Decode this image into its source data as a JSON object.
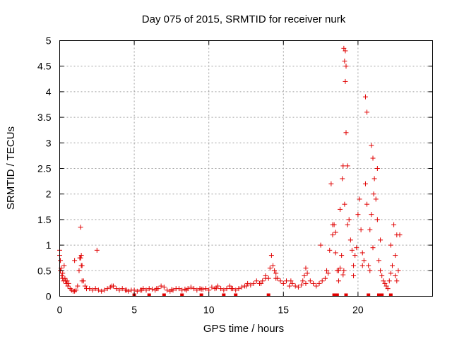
{
  "chart_data": {
    "type": "scatter",
    "title": "Day 075 of 2015, SRMTID for receiver nurk",
    "xlabel": "GPS time / hours",
    "ylabel": "SRMTID / TECUs",
    "xlim": [
      0,
      25
    ],
    "ylim": [
      0,
      5
    ],
    "xticks": [
      0,
      5,
      10,
      15,
      20
    ],
    "xtick_labels": [
      "0",
      "5",
      "10",
      "15",
      "20"
    ],
    "yticks": [
      0,
      0.5,
      1,
      1.5,
      2,
      2.5,
      3,
      3.5,
      4,
      4.5,
      5
    ],
    "ytick_labels": [
      "0",
      "0.5",
      "1",
      "1.5",
      "2",
      "2.5",
      "3",
      "3.5",
      "4",
      "4.5",
      "5"
    ],
    "grid": true,
    "marker": "+",
    "color": "#e00000",
    "series": [
      {
        "name": "SRMTID",
        "x": [
          0.0,
          0.05,
          0.1,
          0.15,
          0.2,
          0.25,
          0.3,
          0.35,
          0.4,
          0.45,
          0.5,
          0.55,
          0.6,
          0.7,
          0.8,
          0.9,
          1.0,
          1.1,
          1.2,
          1.3,
          1.35,
          1.4,
          1.45,
          1.5,
          1.6,
          1.7,
          1.8,
          2.0,
          2.2,
          2.4,
          2.6,
          2.8,
          3.0,
          3.2,
          3.4,
          3.6,
          3.8,
          4.0,
          4.2,
          4.4,
          4.6,
          4.8,
          5.0,
          5.2,
          5.4,
          5.6,
          5.8,
          6.0,
          6.2,
          6.4,
          6.6,
          6.8,
          7.0,
          7.2,
          7.4,
          7.6,
          7.8,
          8.0,
          8.2,
          8.4,
          8.6,
          8.8,
          9.0,
          9.2,
          9.4,
          9.6,
          9.8,
          10.0,
          10.2,
          10.4,
          10.6,
          10.8,
          11.0,
          11.2,
          11.4,
          11.6,
          11.8,
          12.0,
          12.2,
          12.4,
          12.6,
          12.8,
          13.0,
          13.2,
          13.4,
          13.6,
          13.8,
          14.0,
          14.1,
          14.2,
          14.3,
          14.4,
          14.5,
          14.6,
          14.8,
          15.0,
          15.2,
          15.4,
          15.6,
          15.8,
          16.0,
          16.2,
          16.3,
          16.4,
          16.5,
          16.6,
          16.8,
          17.0,
          17.2,
          17.4,
          17.6,
          17.8,
          17.9,
          18.0,
          18.1,
          18.2,
          18.3,
          18.4,
          18.5,
          18.6,
          18.7,
          18.8,
          18.9,
          18.95,
          19.0,
          19.05,
          19.1,
          19.15,
          19.2,
          19.3,
          19.4,
          19.5,
          19.6,
          19.7,
          19.8,
          19.9,
          20.0,
          20.1,
          20.2,
          20.3,
          20.4,
          20.5,
          20.6,
          20.7,
          20.8,
          20.9,
          21.0,
          21.1,
          21.2,
          21.3,
          21.4,
          21.5,
          21.6,
          21.7,
          21.8,
          21.9,
          22.0,
          22.1,
          22.2,
          22.3,
          22.4,
          22.5,
          22.6,
          22.7,
          22.8,
          0.0,
          0.05,
          0.2,
          1.4,
          1.45,
          13.8,
          18.5,
          18.8,
          19.0,
          19.05,
          19.1,
          19.15,
          19.2,
          20.5,
          20.6,
          20.9,
          21.0,
          21.05,
          21.3,
          22.2,
          22.6,
          1.0,
          1.5,
          2.5,
          3.5,
          4.5,
          5.5,
          6.5,
          7.5,
          8.5,
          9.5,
          10.5,
          11.5,
          12.5,
          13.5,
          14.5,
          15.5,
          16.5,
          17.5,
          18.3,
          18.7,
          19.3,
          19.7,
          20.3,
          20.8,
          21.5,
          22.5
        ],
        "y": [
          0.9,
          0.7,
          0.55,
          0.4,
          0.35,
          0.3,
          0.6,
          0.35,
          0.3,
          0.25,
          0.3,
          0.2,
          0.25,
          0.15,
          0.12,
          0.1,
          0.1,
          0.12,
          0.2,
          0.5,
          0.75,
          1.35,
          0.8,
          0.6,
          0.3,
          0.2,
          0.15,
          0.15,
          0.12,
          0.15,
          0.12,
          0.1,
          0.12,
          0.15,
          0.18,
          0.2,
          0.15,
          0.12,
          0.15,
          0.12,
          0.1,
          0.12,
          0.12,
          0.1,
          0.12,
          0.15,
          0.12,
          0.15,
          0.14,
          0.12,
          0.15,
          0.2,
          0.18,
          0.12,
          0.1,
          0.12,
          0.15,
          0.15,
          0.12,
          0.14,
          0.15,
          0.18,
          0.15,
          0.12,
          0.15,
          0.14,
          0.15,
          0.12,
          0.18,
          0.15,
          0.2,
          0.15,
          0.12,
          0.15,
          0.2,
          0.15,
          0.12,
          0.15,
          0.18,
          0.2,
          0.25,
          0.22,
          0.25,
          0.3,
          0.25,
          0.3,
          0.35,
          0.35,
          0.55,
          0.8,
          0.6,
          0.5,
          0.45,
          0.35,
          0.3,
          0.25,
          0.3,
          0.2,
          0.25,
          0.2,
          0.18,
          0.22,
          0.3,
          0.4,
          0.55,
          0.45,
          0.3,
          0.25,
          0.2,
          0.25,
          0.3,
          0.35,
          0.5,
          0.45,
          0.9,
          2.2,
          1.2,
          1.4,
          0.85,
          0.5,
          0.3,
          1.7,
          0.8,
          2.3,
          2.55,
          4.85,
          4.6,
          4.2,
          3.2,
          2.55,
          1.5,
          1.1,
          0.9,
          0.6,
          0.8,
          0.95,
          1.6,
          1.9,
          1.3,
          0.85,
          0.7,
          2.2,
          1.8,
          0.6,
          1.3,
          1.6,
          2.7,
          2.3,
          1.9,
          1.5,
          0.7,
          0.5,
          0.4,
          0.3,
          0.25,
          0.2,
          0.15,
          0.3,
          0.45,
          0.6,
          1.4,
          0.4,
          0.3,
          0.5,
          1.2,
          0.8,
          0.5,
          0.45,
          0.75,
          0.6,
          0.4,
          1.25,
          0.55,
          0.42,
          0.5,
          1.8,
          4.8,
          4.5,
          3.9,
          3.6,
          2.95,
          0.95,
          2.0,
          2.5,
          1.0,
          1.2,
          0.7,
          0.3,
          0.9,
          0.2,
          0.12,
          0.12,
          0.15,
          0.13,
          0.12,
          0.14,
          0.16,
          0.15,
          0.2,
          0.25,
          0.35,
          0.3,
          0.25,
          1.0,
          1.4,
          0.5,
          1.4,
          0.4,
          0.6,
          0.5,
          1.1,
          0.8
        ]
      }
    ],
    "zero_baseline_markers_x": [
      5.0,
      6.0,
      7.0,
      8.2,
      9.5,
      11.0,
      11.8,
      14.0,
      18.4,
      18.6,
      19.2,
      20.7,
      21.4,
      21.6,
      22.2
    ]
  }
}
